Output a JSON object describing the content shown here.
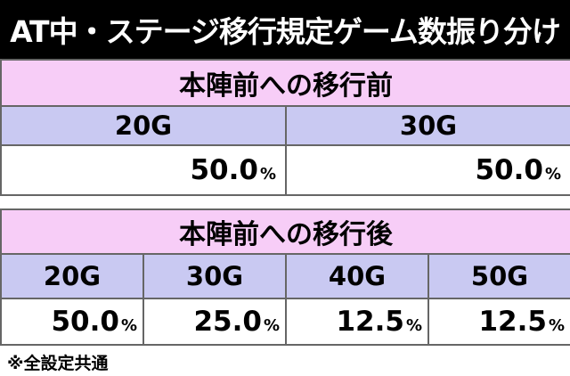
{
  "title": "AT中・ステージ移行規定ゲーム数振り分け",
  "table_before": {
    "header": "本陣前への移行前",
    "columns": [
      "20G",
      "30G"
    ],
    "values": [
      "50.0",
      "50.0"
    ],
    "unit": "%"
  },
  "table_after": {
    "header": "本陣前への移行後",
    "columns": [
      "20G",
      "30G",
      "40G",
      "50G"
    ],
    "values": [
      "50.0",
      "25.0",
      "12.5",
      "12.5"
    ],
    "unit": "%"
  },
  "note": "※全設定共通"
}
